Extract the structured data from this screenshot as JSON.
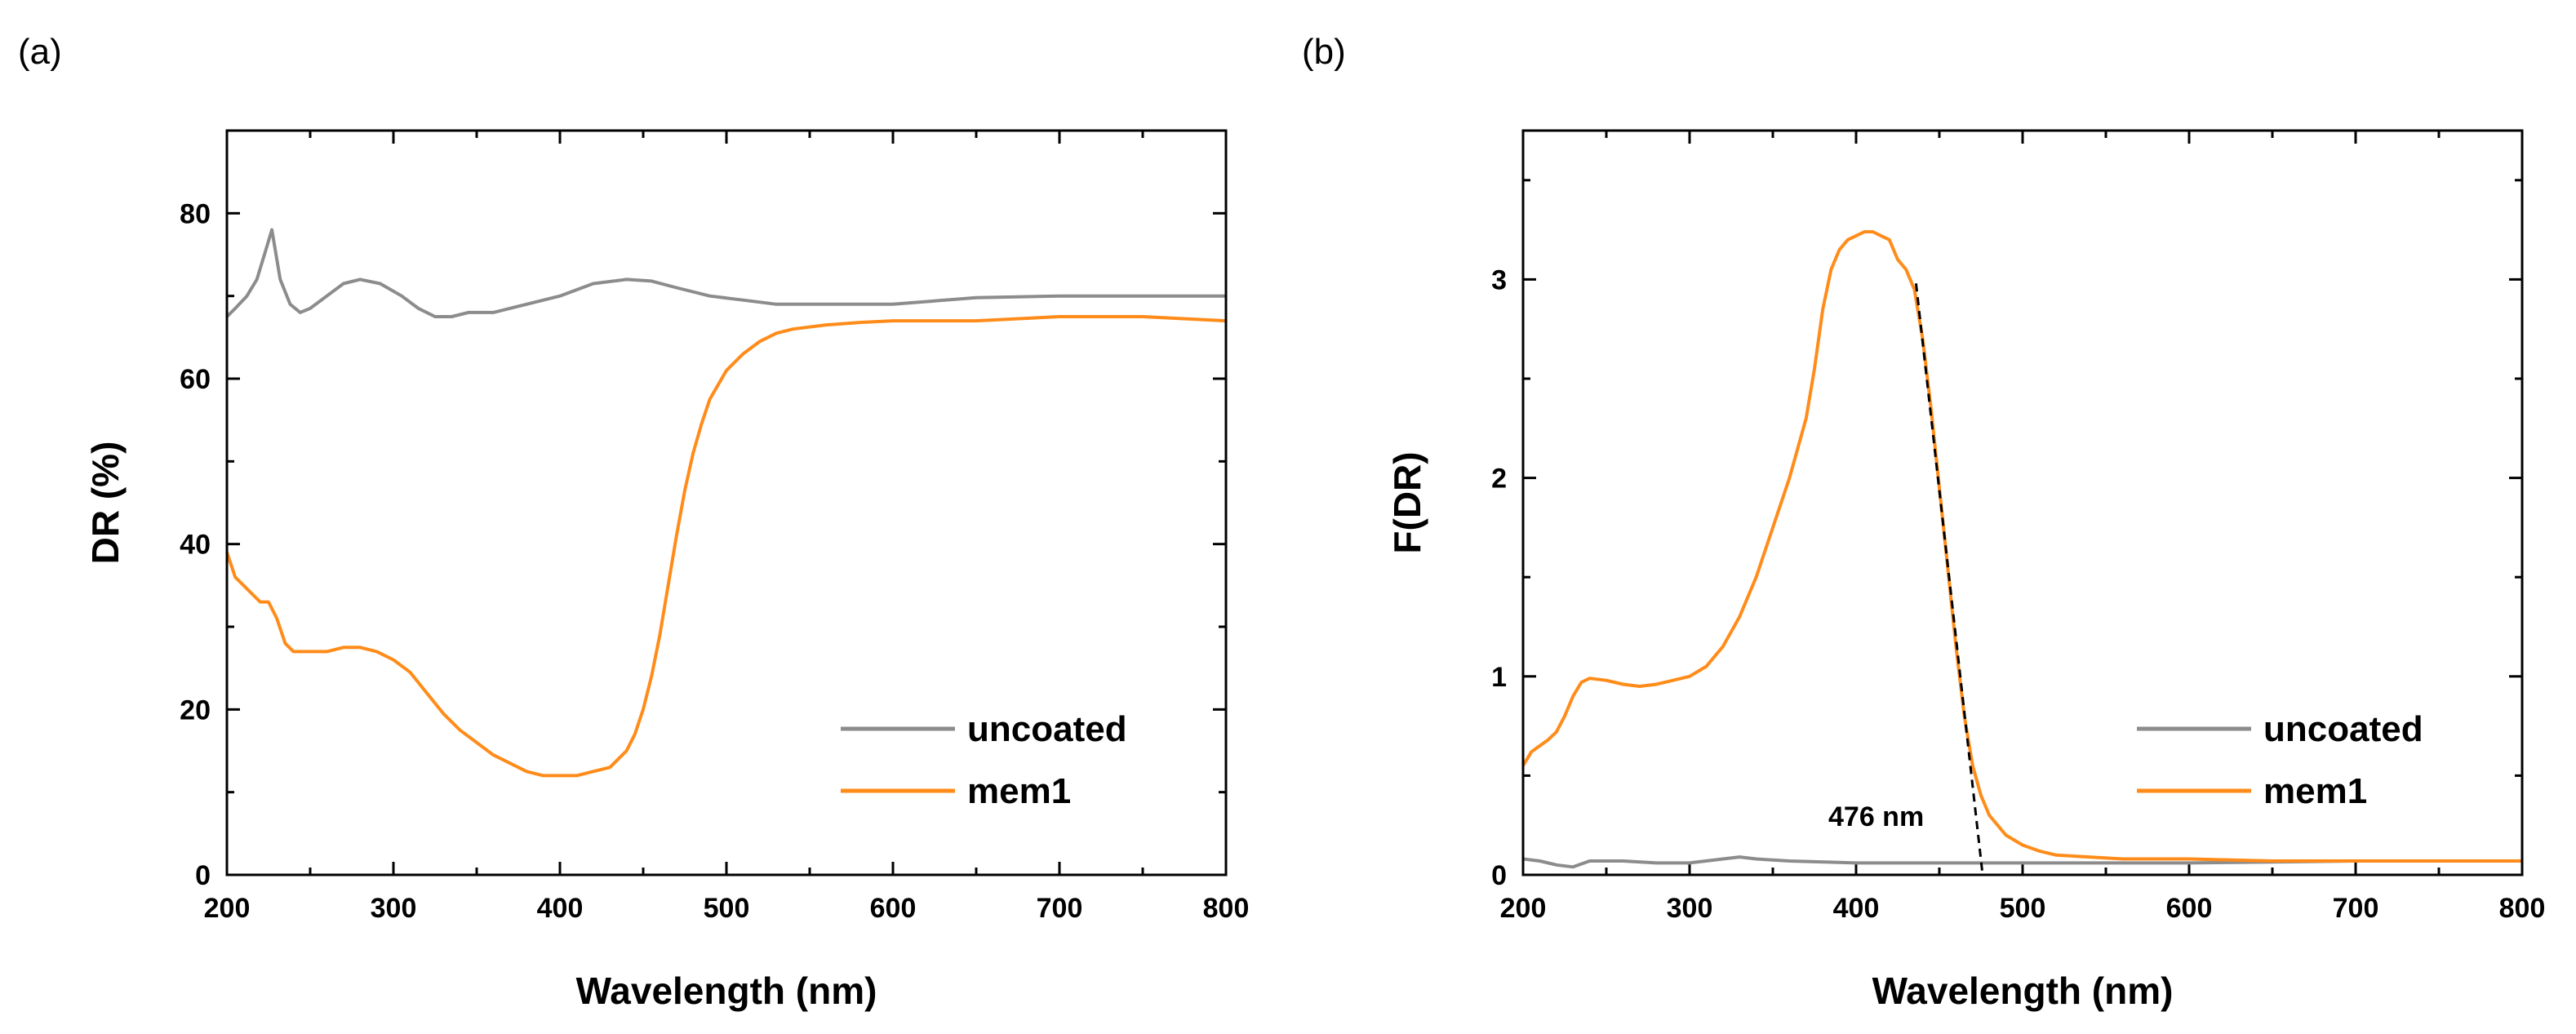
{
  "colors": {
    "uncoated": "#8c8c8c",
    "mem1": "#ff8c1a",
    "axis": "#000000",
    "fit": "#000000"
  },
  "chart_data": [
    {
      "panel_label": "(a)",
      "type": "line",
      "xlabel": "Wavelength (nm)",
      "ylabel": "DR (%)",
      "xlim": [
        200,
        800
      ],
      "ylim": [
        0,
        90
      ],
      "x_ticks": [
        200,
        300,
        400,
        500,
        600,
        700,
        800
      ],
      "x_tick_labels": [
        "200",
        "300",
        "400",
        "500",
        "600",
        "700",
        "800"
      ],
      "y_ticks": [
        0,
        20,
        40,
        60,
        80
      ],
      "y_tick_labels": [
        "0",
        "20",
        "40",
        "60",
        "80"
      ],
      "legend": {
        "position": "bottom-right",
        "entries": [
          "uncoated",
          "mem1"
        ]
      },
      "series": [
        {
          "name": "uncoated",
          "x": [
            200,
            205,
            212,
            218,
            224,
            227,
            232,
            238,
            244,
            250,
            260,
            270,
            280,
            292,
            305,
            315,
            325,
            335,
            345,
            360,
            380,
            400,
            420,
            440,
            455,
            470,
            490,
            510,
            530,
            560,
            600,
            650,
            700,
            750,
            800
          ],
          "y": [
            67.5,
            68.5,
            70,
            72,
            76,
            78,
            72,
            69,
            68,
            68.5,
            70,
            71.5,
            72,
            71.5,
            70,
            68.5,
            67.5,
            67.5,
            68,
            68,
            69,
            70,
            71.5,
            72,
            71.8,
            71,
            70,
            69.5,
            69,
            69,
            69,
            69.8,
            70,
            70,
            70
          ]
        },
        {
          "name": "mem1",
          "x": [
            200,
            205,
            210,
            215,
            220,
            225,
            230,
            235,
            240,
            250,
            260,
            270,
            280,
            290,
            300,
            310,
            320,
            330,
            340,
            350,
            360,
            370,
            380,
            390,
            400,
            410,
            420,
            430,
            440,
            445,
            450,
            455,
            460,
            465,
            470,
            475,
            480,
            485,
            490,
            500,
            510,
            520,
            530,
            540,
            560,
            580,
            600,
            650,
            700,
            750,
            800
          ],
          "y": [
            39,
            36,
            35,
            34,
            33,
            33,
            31,
            28,
            27,
            27,
            27,
            27.5,
            27.5,
            27,
            26,
            24.5,
            22,
            19.5,
            17.5,
            16,
            14.5,
            13.5,
            12.5,
            12,
            12,
            12,
            12.5,
            13,
            15,
            17,
            20,
            24,
            29,
            35,
            41,
            46.5,
            51,
            54.5,
            57.5,
            61,
            63,
            64.5,
            65.5,
            66,
            66.5,
            66.8,
            67,
            67,
            67.5,
            67.5,
            67
          ]
        }
      ]
    },
    {
      "panel_label": "(b)",
      "type": "line",
      "xlabel": "Wavelength (nm)",
      "ylabel": "F(DR)",
      "xlim": [
        200,
        800
      ],
      "ylim": [
        0,
        3.75
      ],
      "x_ticks": [
        200,
        300,
        400,
        500,
        600,
        700,
        800
      ],
      "x_tick_labels": [
        "200",
        "300",
        "400",
        "500",
        "600",
        "700",
        "800"
      ],
      "y_ticks": [
        0,
        1,
        2,
        3
      ],
      "y_tick_labels": [
        "0",
        "1",
        "2",
        "3"
      ],
      "legend": {
        "position": "bottom-right",
        "entries": [
          "uncoated",
          "mem1"
        ]
      },
      "annotation": {
        "text": "476 nm",
        "x": 476,
        "fit_line": {
          "x": [
            436,
            476
          ],
          "y": [
            2.98,
            0.0
          ]
        }
      },
      "series": [
        {
          "name": "uncoated",
          "x": [
            200,
            210,
            220,
            230,
            240,
            260,
            280,
            300,
            320,
            330,
            340,
            360,
            400,
            450,
            500,
            550,
            600,
            700,
            800
          ],
          "y": [
            0.08,
            0.07,
            0.05,
            0.04,
            0.07,
            0.07,
            0.06,
            0.06,
            0.08,
            0.09,
            0.08,
            0.07,
            0.06,
            0.06,
            0.06,
            0.06,
            0.06,
            0.07,
            0.07
          ]
        },
        {
          "name": "mem1",
          "x": [
            200,
            205,
            210,
            215,
            220,
            225,
            230,
            235,
            240,
            250,
            260,
            270,
            280,
            290,
            300,
            310,
            320,
            330,
            340,
            350,
            360,
            365,
            370,
            375,
            380,
            385,
            390,
            395,
            400,
            405,
            410,
            415,
            420,
            425,
            430,
            435,
            440,
            445,
            450,
            455,
            460,
            465,
            470,
            475,
            480,
            490,
            500,
            510,
            520,
            540,
            560,
            600,
            650,
            700,
            750,
            800
          ],
          "y": [
            0.55,
            0.62,
            0.65,
            0.68,
            0.72,
            0.8,
            0.9,
            0.97,
            0.99,
            0.98,
            0.96,
            0.95,
            0.96,
            0.98,
            1.0,
            1.05,
            1.15,
            1.3,
            1.5,
            1.75,
            2.0,
            2.15,
            2.3,
            2.55,
            2.85,
            3.05,
            3.15,
            3.2,
            3.22,
            3.24,
            3.24,
            3.22,
            3.2,
            3.1,
            3.05,
            2.95,
            2.7,
            2.35,
            1.95,
            1.55,
            1.15,
            0.8,
            0.55,
            0.4,
            0.3,
            0.2,
            0.15,
            0.12,
            0.1,
            0.09,
            0.08,
            0.08,
            0.07,
            0.07,
            0.07,
            0.07
          ]
        }
      ]
    }
  ]
}
